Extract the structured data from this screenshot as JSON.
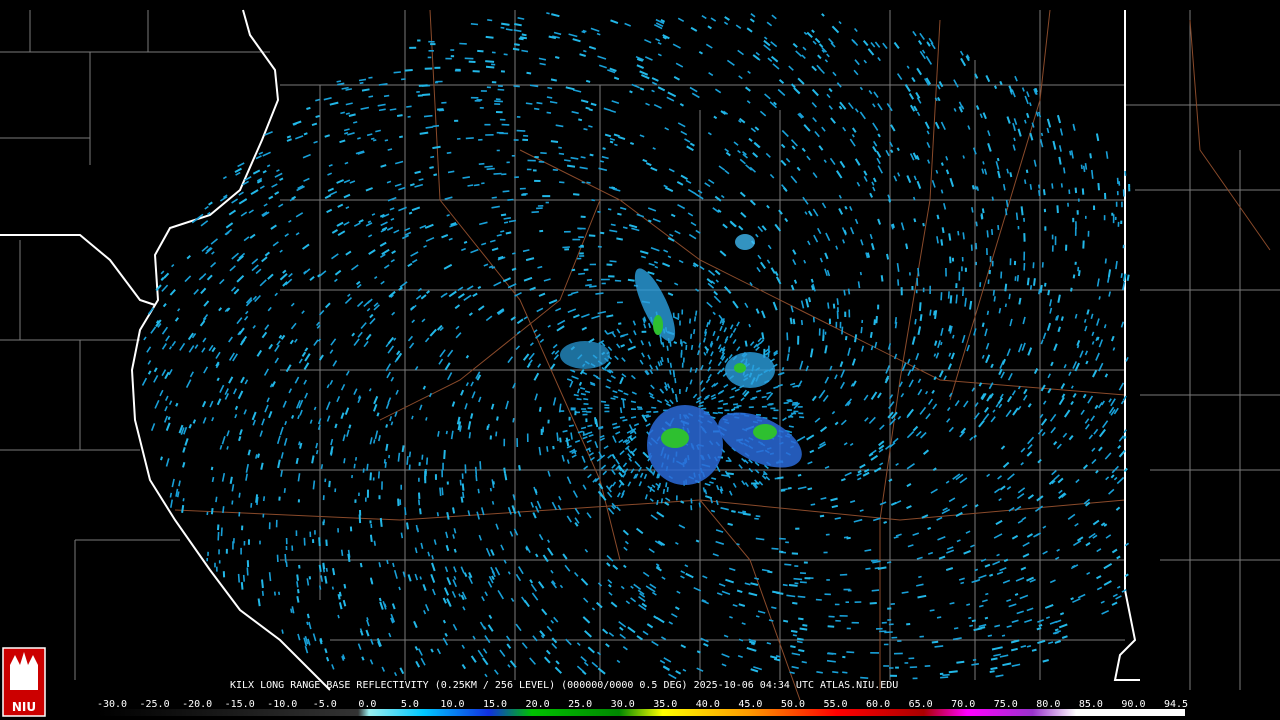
{
  "caption": "KILX LONG RANGE BASE REFLECTIVITY (0.25KM / 256 LEVEL) (000000/0000 0.5 DEG) 2025-10-06 04:34 UTC  ATLAS.NIU.EDU",
  "logo": "NIU",
  "color_scale": {
    "labels": [
      "-30.0",
      "-25.0",
      "-20.0",
      "-15.0",
      "-10.0",
      "-5.0",
      "0.0",
      "5.0",
      "10.0",
      "15.0",
      "20.0",
      "25.0",
      "30.0",
      "35.0",
      "40.0",
      "45.0",
      "50.0",
      "55.0",
      "60.0",
      "65.0",
      "70.0",
      "75.0",
      "80.0",
      "85.0",
      "90.0",
      "94.5"
    ]
  }
}
